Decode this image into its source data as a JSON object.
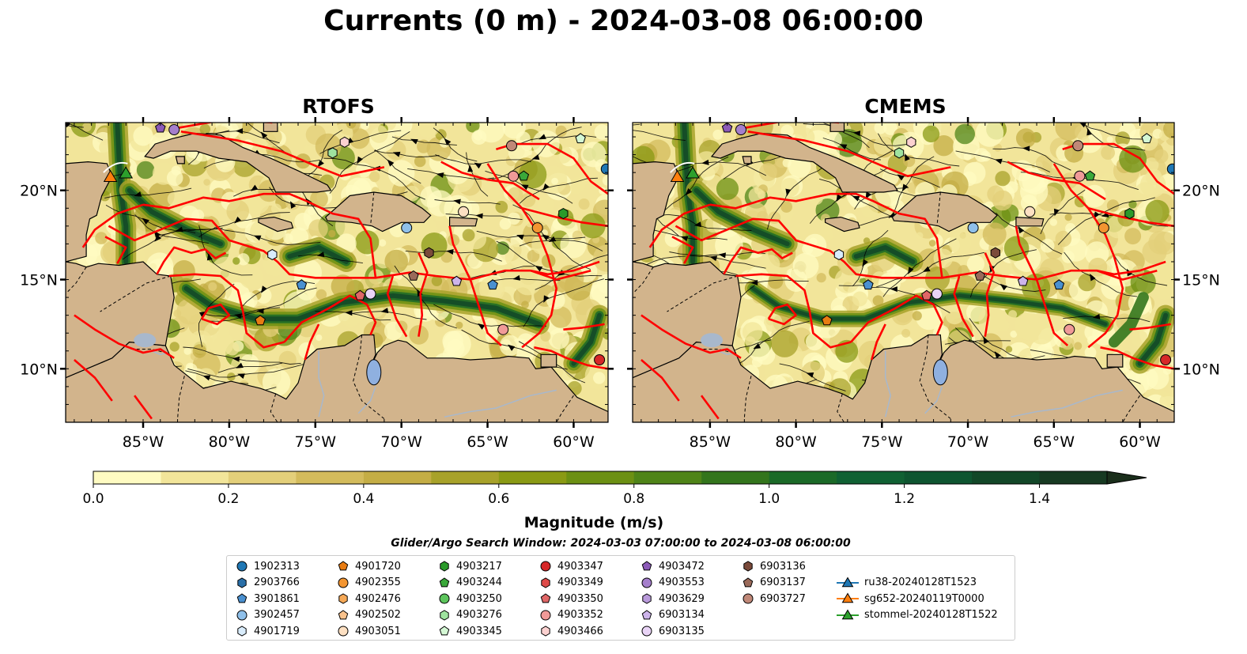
{
  "title": "Currents (0 m) - 2024-03-08 06:00:00",
  "panels": [
    {
      "title": "RTOFS"
    },
    {
      "title": "CMEMS"
    }
  ],
  "chart_data": {
    "type": "heatmap",
    "title": "Currents (0 m) - 2024-03-08 06:00:00",
    "panel_titles": [
      "RTOFS",
      "CMEMS"
    ],
    "lon_range": [
      -89.5,
      -58.0
    ],
    "lat_range": [
      7.0,
      23.8
    ],
    "lon_ticks": [
      "85°W",
      "80°W",
      "75°W",
      "70°W",
      "65°W",
      "60°W"
    ],
    "lon_tick_values": [
      -85,
      -80,
      -75,
      -70,
      -65,
      -60
    ],
    "lat_ticks": [
      "10°N",
      "15°N",
      "20°N"
    ],
    "lat_tick_values": [
      10,
      15,
      20
    ],
    "colorbar": {
      "label": "Magnitude (m/s)",
      "min": 0.0,
      "max": 1.5,
      "extend": "max",
      "ticks": [
        "0.0",
        "0.2",
        "0.4",
        "0.6",
        "0.8",
        "1.0",
        "1.2",
        "1.4"
      ],
      "tick_values": [
        0.0,
        0.2,
        0.4,
        0.6,
        0.8,
        1.0,
        1.2,
        1.4
      ],
      "level_colors": [
        "#fffbc2",
        "#f2e59a",
        "#e3cf7a",
        "#d3bb5c",
        "#c4ad45",
        "#a8a22a",
        "#8a9a14",
        "#6c9013",
        "#4f8418",
        "#33751c",
        "#1b6a28",
        "#106133",
        "#0e5530",
        "#124728",
        "#173a22",
        "#1a2e1b"
      ]
    },
    "search_window": "Glider/Argo Search Window: 2024-03-03 07:00:00 to 2024-03-08 06:00:00",
    "legend": [
      {
        "label": "1902313",
        "marker": "circle",
        "color": "#1f77b4"
      },
      {
        "label": "2903766",
        "marker": "hexagon",
        "color": "#2a6fa8"
      },
      {
        "label": "3901861",
        "marker": "pentagon",
        "color": "#4a90d0"
      },
      {
        "label": "3902457",
        "marker": "circle",
        "color": "#8fc0ea"
      },
      {
        "label": "4901719",
        "marker": "hexagon",
        "color": "#d9ecfb"
      },
      {
        "label": "4901720",
        "marker": "pentagon",
        "color": "#e87c12"
      },
      {
        "label": "4902355",
        "marker": "circle",
        "color": "#f39531"
      },
      {
        "label": "4902476",
        "marker": "hexagon",
        "color": "#f6a957"
      },
      {
        "label": "4902502",
        "marker": "pentagon",
        "color": "#f9c28c"
      },
      {
        "label": "4903051",
        "marker": "circle",
        "color": "#fde0c2"
      },
      {
        "label": "4903217",
        "marker": "hexagon",
        "color": "#2a9a2a"
      },
      {
        "label": "4903244",
        "marker": "pentagon",
        "color": "#3aa83a"
      },
      {
        "label": "4903250",
        "marker": "circle",
        "color": "#5cc45c"
      },
      {
        "label": "4903276",
        "marker": "hexagon",
        "color": "#9fe39f"
      },
      {
        "label": "4903345",
        "marker": "pentagon",
        "color": "#d4f7d4"
      },
      {
        "label": "4903347",
        "marker": "circle",
        "color": "#d62728"
      },
      {
        "label": "4903349",
        "marker": "hexagon",
        "color": "#de4a48"
      },
      {
        "label": "4903350",
        "marker": "pentagon",
        "color": "#e06767"
      },
      {
        "label": "4903352",
        "marker": "circle",
        "color": "#f09a98"
      },
      {
        "label": "4903466",
        "marker": "hexagon",
        "color": "#fbd1d0"
      },
      {
        "label": "4903472",
        "marker": "pentagon",
        "color": "#8c5ab8"
      },
      {
        "label": "4903553",
        "marker": "circle",
        "color": "#a57fcc"
      },
      {
        "label": "4903629",
        "marker": "hexagon",
        "color": "#b99adb"
      },
      {
        "label": "6903134",
        "marker": "pentagon",
        "color": "#cdb4ea"
      },
      {
        "label": "6903135",
        "marker": "circle",
        "color": "#e9d4f6"
      },
      {
        "label": "6903136",
        "marker": "hexagon",
        "color": "#7a4a3a"
      },
      {
        "label": "6903137",
        "marker": "pentagon",
        "color": "#9a6a5a"
      },
      {
        "label": "6903727",
        "marker": "circle",
        "color": "#c08878"
      },
      {
        "label": "ru38-20240128T1523",
        "marker": "triangle-line",
        "color": "#1f77b4"
      },
      {
        "label": "sg652-20240119T0000",
        "marker": "triangle-line",
        "color": "#ff7f0e"
      },
      {
        "label": "stommel-20240128T1522",
        "marker": "triangle-line",
        "color": "#2ca02c"
      }
    ],
    "glider_positions": [
      {
        "label": "sg652-20240119T0000",
        "lon": -86.9,
        "lat": 20.7
      },
      {
        "label": "stommel-20240128T1522",
        "lon": -86.0,
        "lat": 20.9
      }
    ],
    "argo_positions": [
      {
        "label": "1902313",
        "lon": -58.1,
        "lat": 21.2
      },
      {
        "label": "3901861",
        "lon": -75.8,
        "lat": 14.7
      },
      {
        "label": "3902457",
        "lon": -69.7,
        "lat": 17.9
      },
      {
        "label": "4901719",
        "lon": -77.5,
        "lat": 16.4
      },
      {
        "label": "4901720",
        "lon": -78.2,
        "lat": 12.7
      },
      {
        "label": "4902355",
        "lon": -62.1,
        "lat": 17.9
      },
      {
        "label": "4903051",
        "lon": -66.4,
        "lat": 18.8
      },
      {
        "label": "4903217",
        "lon": -60.6,
        "lat": 18.7
      },
      {
        "label": "4903244",
        "lon": -62.9,
        "lat": 20.8
      },
      {
        "label": "4903276",
        "lon": -74.0,
        "lat": 22.1
      },
      {
        "label": "4903345",
        "lon": -59.6,
        "lat": 22.9
      },
      {
        "label": "4903347",
        "lon": -58.5,
        "lat": 10.5
      },
      {
        "label": "4903350",
        "lon": -72.4,
        "lat": 14.1
      },
      {
        "label": "4903352",
        "lon": -63.5,
        "lat": 20.8
      },
      {
        "label": "4903466",
        "lon": -73.3,
        "lat": 22.7
      },
      {
        "label": "4903472",
        "lon": -84.0,
        "lat": 23.5
      },
      {
        "label": "4903553",
        "lon": -83.2,
        "lat": 23.4
      },
      {
        "label": "6903134",
        "lon": -66.8,
        "lat": 14.9
      },
      {
        "label": "6903135",
        "lon": -71.8,
        "lat": 14.2
      },
      {
        "label": "6903136",
        "lon": -68.4,
        "lat": 16.5
      },
      {
        "label": "6903137",
        "lon": -69.3,
        "lat": 15.2
      },
      {
        "label": "6903727",
        "lon": -63.6,
        "lat": 22.5
      },
      {
        "label": "3901861",
        "lon": -64.7,
        "lat": 14.7
      },
      {
        "label": "4903352",
        "lon": -64.1,
        "lat": 12.2
      }
    ],
    "colors": {
      "land": "#d2b48c",
      "coast": "#000000",
      "eez_lines": "#ff0000",
      "rivers": "#a8b8cc",
      "lake": "#8fb0e0",
      "streamlines": "#000000"
    }
  }
}
